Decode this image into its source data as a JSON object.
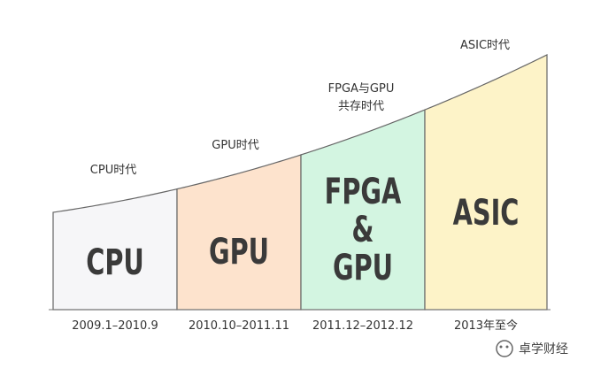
{
  "segments": [
    {
      "era": [
        "CPU时代"
      ],
      "label": [
        "CPU"
      ],
      "period": "2009.1–2010.9"
    },
    {
      "era": [
        "GPU时代"
      ],
      "label": [
        "GPU"
      ],
      "period": "2010.10–2011.11"
    },
    {
      "era": [
        "FPGA与GPU",
        "共存时代"
      ],
      "label": [
        "FPGA",
        "&",
        "GPU"
      ],
      "period": "2011.12–2012.12"
    },
    {
      "era": [
        "ASIC时代"
      ],
      "label": [
        "ASIC"
      ],
      "period": "2013年至今"
    }
  ],
  "watermark": "卓学财经"
}
